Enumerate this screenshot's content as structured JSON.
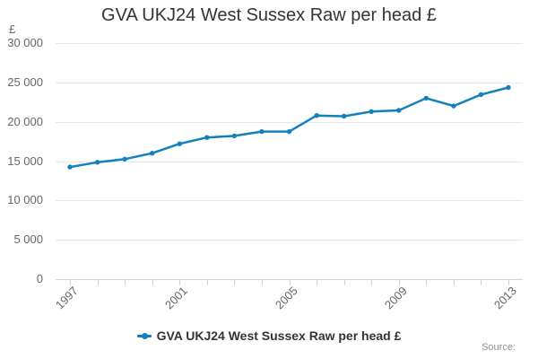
{
  "header": {
    "title": "GVA UKJ24 West Sussex Raw per head £"
  },
  "chart_data": {
    "type": "line",
    "title": "GVA UKJ24 West Sussex Raw per head £",
    "y_unit_label": "£",
    "categories": [
      "1997",
      "1998",
      "1999",
      "2000",
      "2001",
      "2002",
      "2003",
      "2004",
      "2005",
      "2006",
      "2007",
      "2008",
      "2009",
      "2010",
      "2011",
      "2012",
      "2013"
    ],
    "series": [
      {
        "name": "GVA UKJ24 West Sussex Raw per head £",
        "color": "#1380be",
        "values": [
          14250,
          14850,
          15250,
          16000,
          17200,
          18000,
          18200,
          18750,
          18750,
          20800,
          20700,
          21300,
          21450,
          23000,
          22000,
          23450,
          24350
        ]
      }
    ],
    "ylim": [
      0,
      30000
    ],
    "y_ticks": [
      0,
      5000,
      10000,
      15000,
      20000,
      25000,
      30000
    ],
    "y_tick_labels": [
      "0",
      "5 000",
      "10 000",
      "15 000",
      "20 000",
      "25 000",
      "30 000"
    ],
    "x_label_every": 4,
    "x_tick_labels_visible": [
      "1997",
      "2001",
      "2005",
      "2009",
      "2013"
    ],
    "grid": "horizontal",
    "legend_position": "bottom",
    "colors": {
      "grid": "#e6e6e6",
      "axis": "#ccd6e0",
      "tick_label": "#666666",
      "title": "#333333"
    }
  },
  "legend": {
    "label": "GVA UKJ24 West Sussex Raw per head £"
  },
  "footer": {
    "source_label": "Source:"
  }
}
